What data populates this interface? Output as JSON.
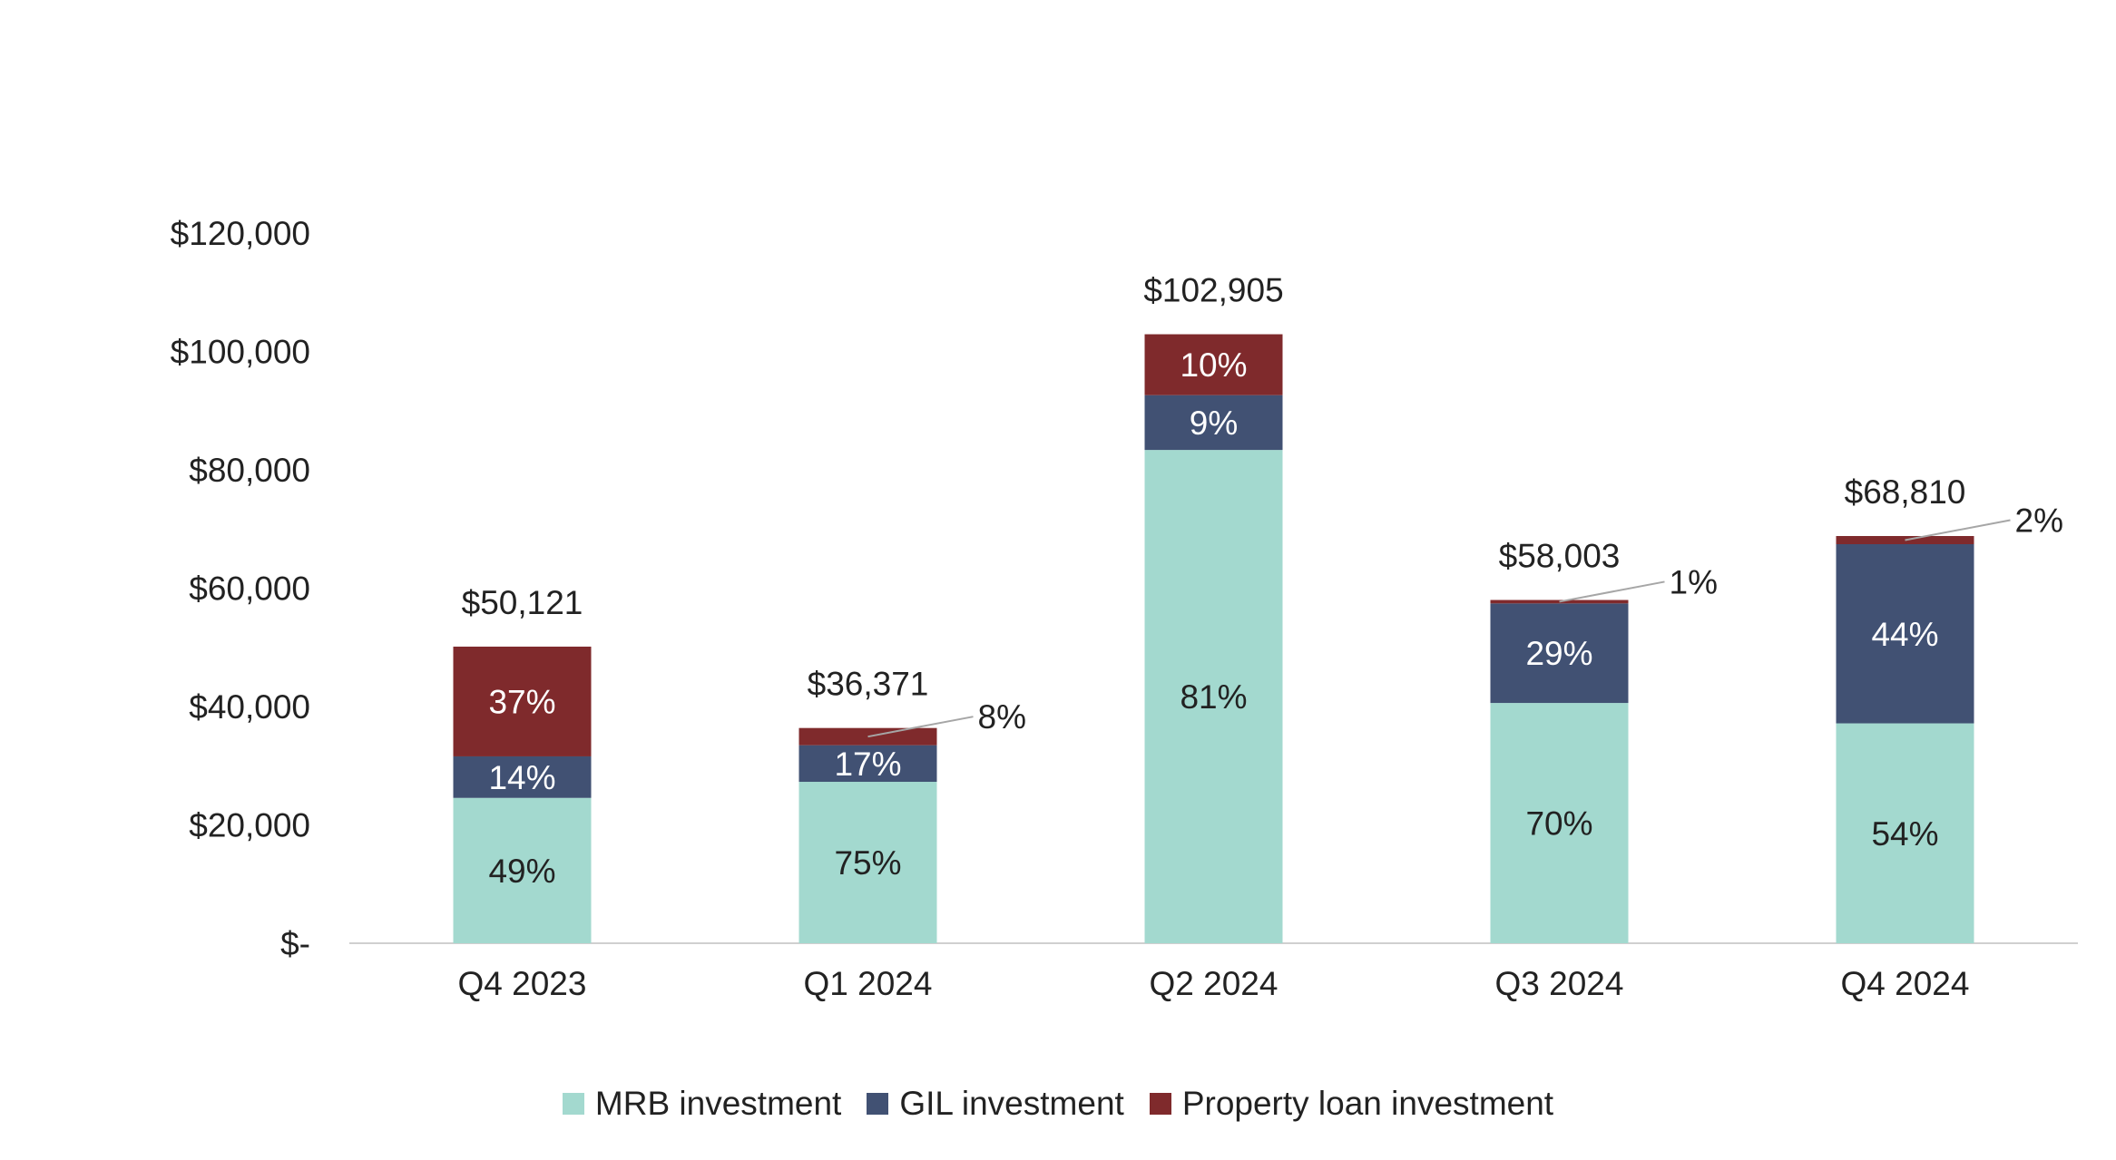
{
  "chart_data": {
    "type": "bar",
    "stacked": true,
    "categories": [
      "Q4 2023",
      "Q1 2024",
      "Q2 2024",
      "Q3 2024",
      "Q4 2024"
    ],
    "y_tick_labels": [
      "$-",
      "$20,000",
      "$40,000",
      "$60,000",
      "$80,000",
      "$100,000",
      "$120,000"
    ],
    "y_ticks": [
      0,
      20000,
      40000,
      60000,
      80000,
      100000,
      120000
    ],
    "ylim": [
      0,
      120000
    ],
    "totals": [
      50121,
      36371,
      102905,
      58003,
      68810
    ],
    "total_labels": [
      "$50,121",
      "$36,371",
      "$102,905",
      "$58,003",
      "$68,810"
    ],
    "series": [
      {
        "name": "MRB investment",
        "color": "#a3d9cf",
        "text_color": "#222222",
        "values": [
          24559,
          27278,
          83353,
          40602,
          37157
        ],
        "labels": [
          "49%",
          "75%",
          "81%",
          "70%",
          "54%"
        ]
      },
      {
        "name": "GIL investment",
        "color": "#415173",
        "text_color": "#ffffff",
        "values": [
          7017,
          6183,
          9261,
          16821,
          30277
        ],
        "labels": [
          "14%",
          "17%",
          "9%",
          "29%",
          "44%"
        ]
      },
      {
        "name": "Property loan investment",
        "color": "#7f2a2c",
        "text_color": "#ffffff",
        "values": [
          18545,
          2910,
          10291,
          580,
          1376
        ],
        "labels": [
          "37%",
          "8%",
          "10%",
          "1%",
          "2%"
        ]
      }
    ],
    "grid": false,
    "legend_position": "bottom"
  }
}
